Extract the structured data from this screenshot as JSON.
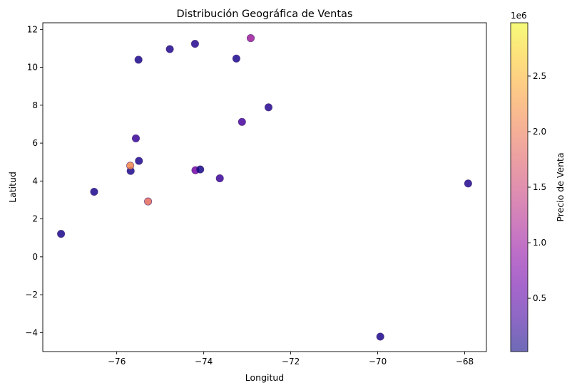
{
  "chart_data": {
    "type": "scatter",
    "title": "Distribución Geográfica de Ventas",
    "xlabel": "Longitud",
    "ylabel": "Latitud",
    "xlim": [
      -77.7,
      -67.5
    ],
    "ylim": [
      -5.0,
      12.35
    ],
    "x_ticks": [
      -76,
      -74,
      -72,
      -70,
      -68
    ],
    "y_ticks": [
      -4,
      -2,
      0,
      2,
      4,
      6,
      8,
      10,
      12
    ],
    "grid": false,
    "colorbar": {
      "label": "Precio de Venta",
      "colormap": "plasma",
      "alpha": 0.6,
      "range": [
        20000,
        2980000
      ],
      "ticks": [
        0.5,
        1.0,
        1.5,
        2.0,
        2.5
      ],
      "tick_scale_label": "1e6",
      "scale_factor": 1000000
    },
    "points": [
      {
        "x": -77.28,
        "y": 1.21,
        "value": 90000
      },
      {
        "x": -76.52,
        "y": 3.43,
        "value": 100000
      },
      {
        "x": -75.68,
        "y": 4.53,
        "value": 100000
      },
      {
        "x": -75.69,
        "y": 4.81,
        "value": 2100000
      },
      {
        "x": -75.49,
        "y": 5.06,
        "value": 110000
      },
      {
        "x": -75.56,
        "y": 6.25,
        "value": 260000
      },
      {
        "x": -75.28,
        "y": 2.92,
        "value": 1850000
      },
      {
        "x": -75.5,
        "y": 10.4,
        "value": 90000
      },
      {
        "x": -74.78,
        "y": 10.96,
        "value": 120000
      },
      {
        "x": -74.2,
        "y": 11.24,
        "value": 150000
      },
      {
        "x": -74.19,
        "y": 4.57,
        "value": 700000
      },
      {
        "x": -74.08,
        "y": 4.61,
        "value": 60000
      },
      {
        "x": -73.63,
        "y": 4.14,
        "value": 280000
      },
      {
        "x": -73.25,
        "y": 10.46,
        "value": 100000
      },
      {
        "x": -73.12,
        "y": 7.12,
        "value": 350000
      },
      {
        "x": -72.92,
        "y": 11.54,
        "value": 1050000
      },
      {
        "x": -72.51,
        "y": 7.89,
        "value": 150000
      },
      {
        "x": -69.94,
        "y": -4.21,
        "value": 100000
      },
      {
        "x": -67.92,
        "y": 3.87,
        "value": 130000
      }
    ]
  }
}
